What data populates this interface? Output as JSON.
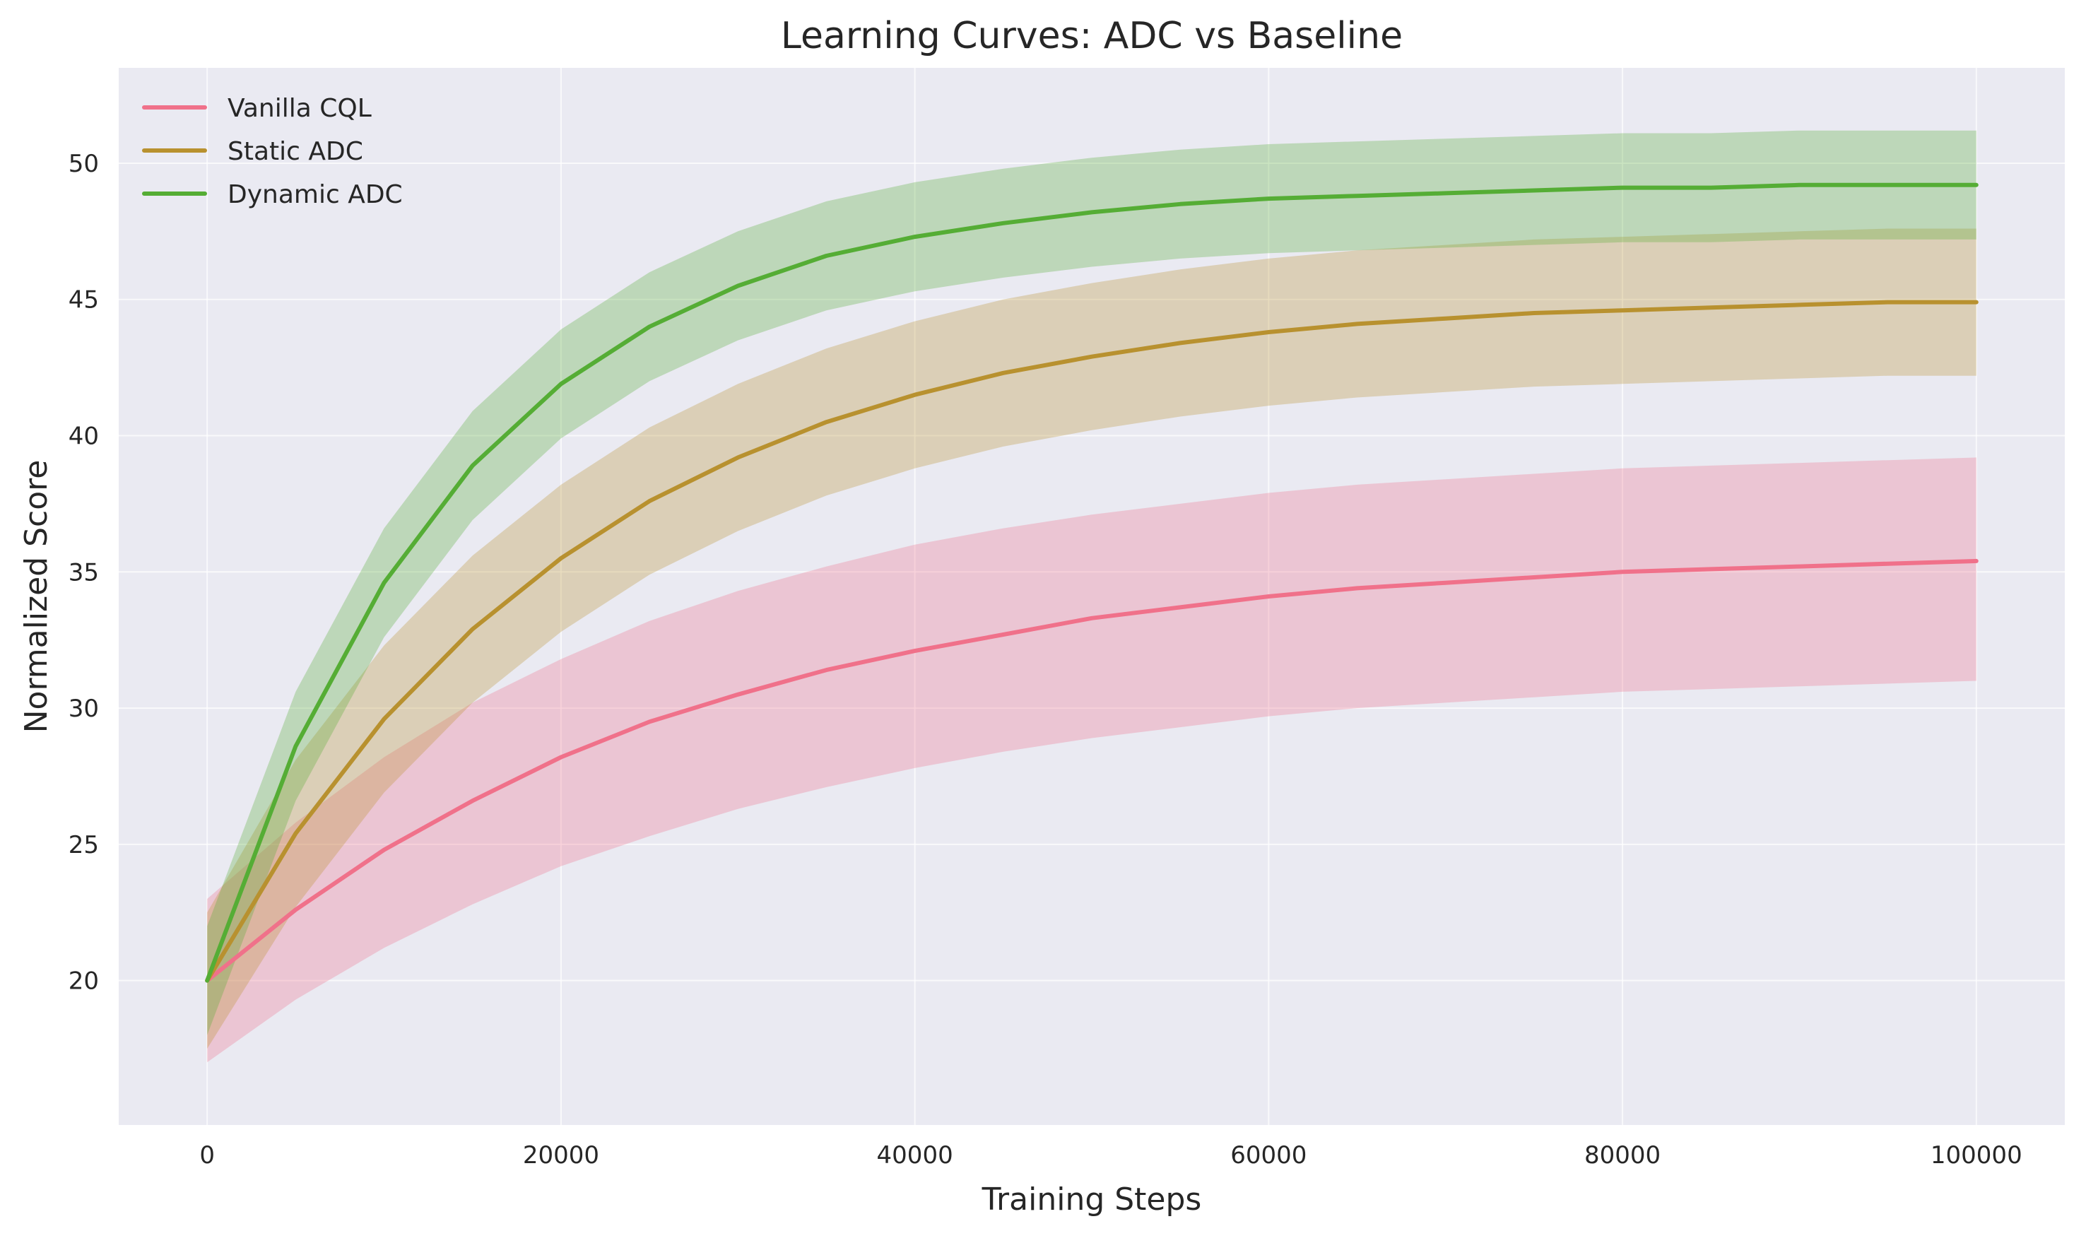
{
  "chart_data": {
    "type": "line",
    "title": "Learning Curves: ADC vs Baseline",
    "xlabel": "Training Steps",
    "ylabel": "Normalized Score",
    "xlim": [
      -5000,
      105000
    ],
    "ylim": [
      14.7,
      53.5
    ],
    "xticks": [
      0,
      20000,
      40000,
      60000,
      80000,
      100000
    ],
    "xtick_labels": [
      "0",
      "20000",
      "40000",
      "60000",
      "80000",
      "100000"
    ],
    "yticks": [
      20,
      25,
      30,
      35,
      40,
      45,
      50
    ],
    "ytick_labels": [
      "20",
      "25",
      "30",
      "35",
      "40",
      "45",
      "50"
    ],
    "grid": true,
    "legend_position": "top-left",
    "colors": {
      "background": "#eaeaf2",
      "grid": "#ffffff",
      "vanilla_cql": "#f0718a",
      "static_adc": "#b8912f",
      "dynamic_adc": "#55ad35"
    },
    "x": [
      0,
      5000,
      10000,
      15000,
      20000,
      25000,
      30000,
      35000,
      40000,
      45000,
      50000,
      55000,
      60000,
      65000,
      70000,
      75000,
      80000,
      85000,
      90000,
      95000,
      100000
    ],
    "series": [
      {
        "name": "Vanilla CQL",
        "color_key": "vanilla_cql",
        "values": [
          20.0,
          22.6,
          24.8,
          26.6,
          28.2,
          29.5,
          30.5,
          31.4,
          32.1,
          32.7,
          33.3,
          33.7,
          34.1,
          34.4,
          34.6,
          34.8,
          35.0,
          35.1,
          35.2,
          35.3,
          35.4
        ],
        "lower": [
          17.0,
          19.3,
          21.2,
          22.8,
          24.2,
          25.3,
          26.3,
          27.1,
          27.8,
          28.4,
          28.9,
          29.3,
          29.7,
          30.0,
          30.2,
          30.4,
          30.6,
          30.7,
          30.8,
          30.9,
          31.0
        ],
        "upper": [
          23.0,
          25.8,
          28.2,
          30.2,
          31.8,
          33.2,
          34.3,
          35.2,
          36.0,
          36.6,
          37.1,
          37.5,
          37.9,
          38.2,
          38.4,
          38.6,
          38.8,
          38.9,
          39.0,
          39.1,
          39.2
        ]
      },
      {
        "name": "Static ADC",
        "color_key": "static_adc",
        "values": [
          20.0,
          25.4,
          29.6,
          32.9,
          35.5,
          37.6,
          39.2,
          40.5,
          41.5,
          42.3,
          42.9,
          43.4,
          43.8,
          44.1,
          44.3,
          44.5,
          44.6,
          44.7,
          44.8,
          44.9,
          44.9
        ],
        "lower": [
          17.5,
          22.7,
          26.9,
          30.2,
          32.8,
          34.9,
          36.5,
          37.8,
          38.8,
          39.6,
          40.2,
          40.7,
          41.1,
          41.4,
          41.6,
          41.8,
          41.9,
          42.0,
          42.1,
          42.2,
          42.2
        ],
        "upper": [
          22.5,
          28.1,
          32.3,
          35.6,
          38.2,
          40.3,
          41.9,
          43.2,
          44.2,
          45.0,
          45.6,
          46.1,
          46.5,
          46.8,
          47.0,
          47.2,
          47.3,
          47.4,
          47.5,
          47.6,
          47.6
        ]
      },
      {
        "name": "Dynamic ADC",
        "color_key": "dynamic_adc",
        "values": [
          20.0,
          28.6,
          34.6,
          38.9,
          41.9,
          44.0,
          45.5,
          46.6,
          47.3,
          47.8,
          48.2,
          48.5,
          48.7,
          48.8,
          48.9,
          49.0,
          49.1,
          49.1,
          49.2,
          49.2,
          49.2
        ],
        "lower": [
          18.0,
          26.6,
          32.6,
          36.9,
          39.9,
          42.0,
          43.5,
          44.6,
          45.3,
          45.8,
          46.2,
          46.5,
          46.7,
          46.8,
          46.9,
          47.0,
          47.1,
          47.1,
          47.2,
          47.2,
          47.2
        ],
        "upper": [
          22.0,
          30.6,
          36.6,
          40.9,
          43.9,
          46.0,
          47.5,
          48.6,
          49.3,
          49.8,
          50.2,
          50.5,
          50.7,
          50.8,
          50.9,
          51.0,
          51.1,
          51.1,
          51.2,
          51.2,
          51.2
        ]
      }
    ]
  }
}
